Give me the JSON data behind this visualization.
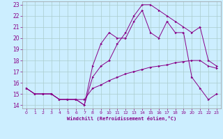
{
  "xlabel": "Windchill (Refroidissement éolien,°C)",
  "bg_color": "#cceeff",
  "grid_color": "#aacccc",
  "line_color": "#880088",
  "xlim": [
    -0.5,
    23.5
  ],
  "ylim": [
    13.7,
    23.3
  ],
  "xticks": [
    0,
    1,
    2,
    3,
    4,
    5,
    6,
    7,
    8,
    9,
    10,
    11,
    12,
    13,
    14,
    15,
    16,
    17,
    18,
    19,
    20,
    21,
    22,
    23
  ],
  "yticks": [
    14,
    15,
    16,
    17,
    18,
    19,
    20,
    21,
    22,
    23
  ],
  "line1_x": [
    0,
    1,
    2,
    3,
    4,
    5,
    6,
    7,
    8,
    9,
    10,
    11,
    12,
    13,
    14,
    15,
    16,
    17,
    18,
    19,
    20,
    21,
    22,
    23
  ],
  "line1_y": [
    15.5,
    15.0,
    15.0,
    15.0,
    14.5,
    14.5,
    14.5,
    14.0,
    16.5,
    17.5,
    18.0,
    19.5,
    20.5,
    22.0,
    23.0,
    23.0,
    22.5,
    22.0,
    21.5,
    21.0,
    20.5,
    21.0,
    18.0,
    17.5
  ],
  "line2_x": [
    0,
    1,
    2,
    3,
    4,
    5,
    6,
    7,
    8,
    9,
    10,
    11,
    12,
    13,
    14,
    15,
    16,
    17,
    18,
    19,
    20,
    21,
    22,
    23
  ],
  "line2_y": [
    15.5,
    15.0,
    15.0,
    15.0,
    14.5,
    14.5,
    14.5,
    14.0,
    17.5,
    19.5,
    20.5,
    20.0,
    20.0,
    21.5,
    22.5,
    20.5,
    20.0,
    21.5,
    20.5,
    20.5,
    16.5,
    15.5,
    14.5,
    15.0
  ],
  "line3_x": [
    0,
    1,
    2,
    3,
    4,
    5,
    6,
    7,
    8,
    9,
    10,
    11,
    12,
    13,
    14,
    15,
    16,
    17,
    18,
    19,
    20,
    21,
    22,
    23
  ],
  "line3_y": [
    15.5,
    15.0,
    15.0,
    15.0,
    14.5,
    14.5,
    14.5,
    14.5,
    15.5,
    15.8,
    16.2,
    16.5,
    16.8,
    17.0,
    17.2,
    17.4,
    17.5,
    17.6,
    17.8,
    17.9,
    18.0,
    18.0,
    17.5,
    17.3
  ]
}
